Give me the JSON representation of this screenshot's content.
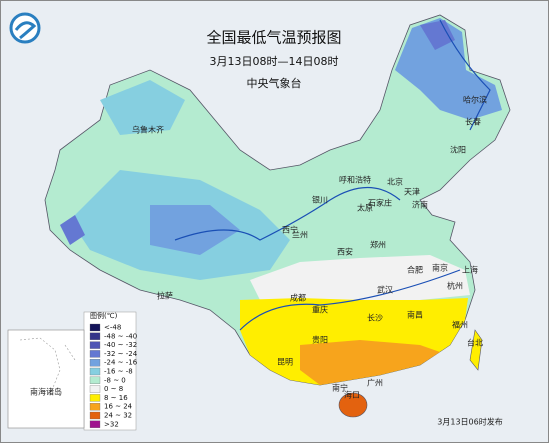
{
  "header": {
    "title": "全国最低气温预报图",
    "subtitle": "3月13日08时—14日08时",
    "agency": "中央气象台"
  },
  "legend": {
    "title": "图例(℃)",
    "items": [
      {
        "label": "<-48",
        "color": "#14145a"
      },
      {
        "label": "-48 ~ -40",
        "color": "#343489"
      },
      {
        "label": "-40 ~ -32",
        "color": "#4f55b5"
      },
      {
        "label": "-32 ~ -24",
        "color": "#6478d2"
      },
      {
        "label": "-24 ~ -16",
        "color": "#72a2df"
      },
      {
        "label": "-16 ~ -8",
        "color": "#86cfe0"
      },
      {
        "label": "-8 ~ 0",
        "color": "#b4ebd0"
      },
      {
        "label": "0 ~ 8",
        "color": "#f2f2f2"
      },
      {
        "label": "8 ~ 16",
        "color": "#ffee00"
      },
      {
        "label": "16 ~ 24",
        "color": "#f7a41c"
      },
      {
        "label": "24 ~ 32",
        "color": "#e3620f"
      },
      {
        "label": ">32",
        "color": "#a0148e"
      }
    ]
  },
  "inset": {
    "label": "南海诸岛"
  },
  "footer": "3月13日06时发布",
  "cities": [
    "乌鲁木齐",
    "哈尔滨",
    "长春",
    "沈阳",
    "呼和浩特",
    "北京",
    "天津",
    "石家庄",
    "太原",
    "济南",
    "银川",
    "西宁",
    "兰州",
    "西安",
    "郑州",
    "合肥",
    "南京",
    "上海",
    "杭州",
    "武汉",
    "长沙",
    "南昌",
    "福州",
    "台北",
    "成都",
    "重庆",
    "贵阳",
    "昆明",
    "南宁",
    "广州",
    "海口",
    "拉萨"
  ]
}
